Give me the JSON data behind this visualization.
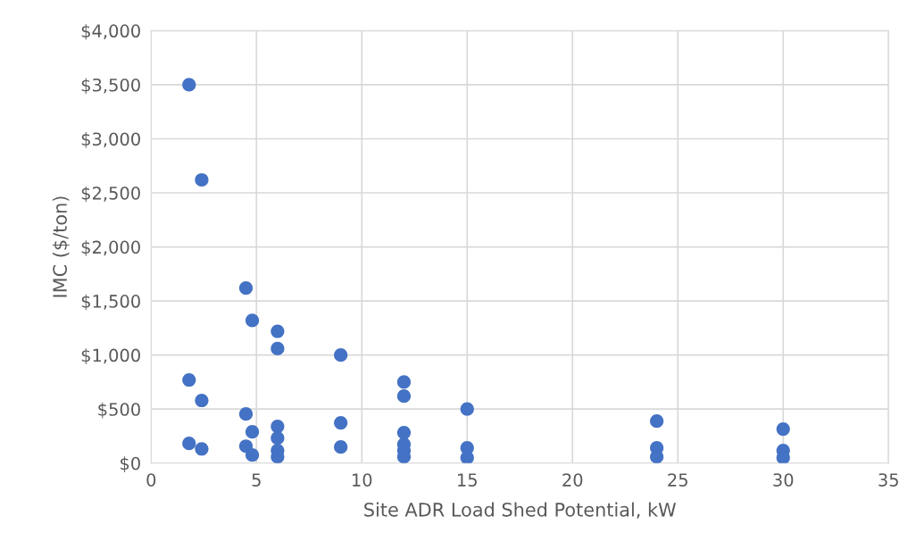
{
  "chart_data": {
    "type": "scatter",
    "xlabel": "Site ADR Load Shed Potential, kW",
    "ylabel": "IMC ($/ton)",
    "series": [
      {
        "color": "#4472c4",
        "x": [
          1.8,
          2.4,
          4.5,
          4.8,
          6,
          6,
          9,
          12,
          12,
          15,
          1.8,
          2.4,
          4.5,
          4.8,
          6,
          6,
          6,
          6,
          9,
          9,
          12,
          12,
          12,
          12,
          15,
          15,
          1.8,
          2.4,
          4.5,
          4.8,
          24,
          24,
          24,
          30,
          30,
          30
        ],
        "values": [
          3500,
          2620,
          1620,
          1320,
          1220,
          1060,
          1000,
          750,
          620,
          500,
          770,
          580,
          455,
          290,
          340,
          232,
          116,
          58,
          373,
          149,
          282,
          174,
          116,
          58,
          141,
          50,
          182,
          132,
          157,
          75,
          389,
          141,
          58,
          315,
          116,
          50
        ]
      }
    ],
    "xlim": [
      0,
      35
    ],
    "xticks": [
      0,
      5,
      10,
      15,
      20,
      25,
      30,
      35
    ],
    "ylim": [
      0,
      4000
    ],
    "yticks": [
      {
        "value": 0,
        "label": "$0"
      },
      {
        "value": 500,
        "label": "$500"
      },
      {
        "value": 1000,
        "label": "$1,000"
      },
      {
        "value": 1500,
        "label": "$1,500"
      },
      {
        "value": 2000,
        "label": "$2,000"
      },
      {
        "value": 2500,
        "label": "$2,500"
      },
      {
        "value": 3000,
        "label": "$3,000"
      },
      {
        "value": 3500,
        "label": "$3,500"
      },
      {
        "value": 4000,
        "label": "$4,000"
      }
    ],
    "grid": true,
    "marker": "circle",
    "legend": false
  }
}
